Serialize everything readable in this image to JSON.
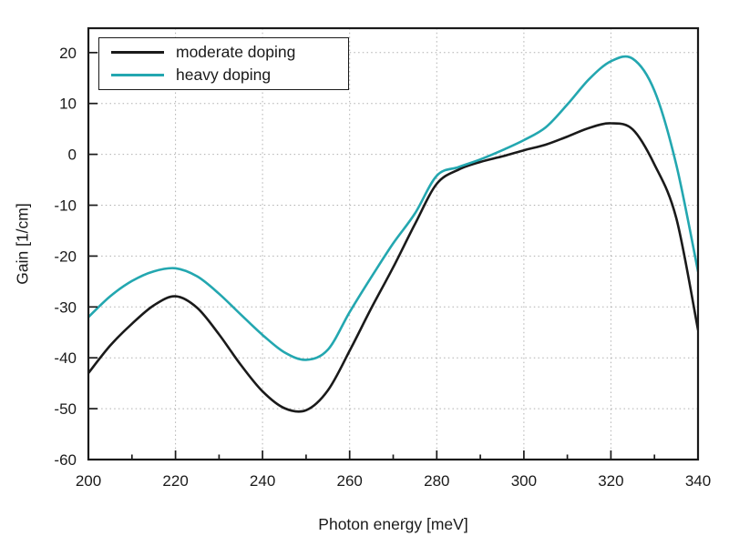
{
  "figure": {
    "background": "#ffffff",
    "frame_color": "#1a1a1a",
    "grid_color": "#b0b0b0",
    "text_color": "#1a1a1a"
  },
  "chart_data": {
    "type": "line",
    "title": "",
    "xlabel": "Photon energy [meV]",
    "ylabel": "Gain [1/cm]",
    "xlim": [
      200,
      340
    ],
    "ylim": [
      -60,
      24.8
    ],
    "x_major_ticks": [
      200,
      220,
      240,
      260,
      280,
      300,
      320,
      340
    ],
    "x_minor_ticks": [
      210,
      230,
      250,
      270,
      290,
      310,
      330
    ],
    "y_major_ticks": [
      20,
      10,
      0,
      -10,
      -20,
      -30,
      -40,
      -50,
      -60
    ],
    "grid": "dotted",
    "legend": {
      "position": "top-left",
      "entries": [
        "moderate doping",
        "heavy doping"
      ]
    },
    "x": [
      200,
      205,
      210,
      215,
      220,
      225,
      230,
      235,
      240,
      245,
      250,
      255,
      260,
      265,
      270,
      275,
      280,
      285,
      290,
      295,
      300,
      305,
      310,
      315,
      320,
      325,
      330,
      335,
      340
    ],
    "series": [
      {
        "name": "moderate doping",
        "color": "#1a1a1a",
        "values": [
          -43,
          -37.6,
          -33.3,
          -29.7,
          -27.9,
          -30.2,
          -35.4,
          -41.4,
          -46.6,
          -49.9,
          -50.3,
          -46.4,
          -38.6,
          -30.2,
          -22.2,
          -13.7,
          -5.8,
          -3,
          -1.5,
          -0.4,
          0.8,
          1.9,
          3.5,
          5.2,
          6.1,
          4.9,
          -2,
          -12.5,
          -34.5
        ]
      },
      {
        "name": "heavy doping",
        "color": "#23a7b0",
        "values": [
          -32,
          -27.9,
          -24.9,
          -23,
          -22.4,
          -24,
          -27.4,
          -31.5,
          -35.5,
          -38.9,
          -40.4,
          -38.4,
          -31,
          -24.1,
          -17.5,
          -11.6,
          -4.2,
          -2.5,
          -1,
          0.8,
          2.8,
          5.3,
          9.8,
          14.8,
          18.3,
          18.8,
          12.5,
          -2,
          -23
        ]
      }
    ]
  }
}
